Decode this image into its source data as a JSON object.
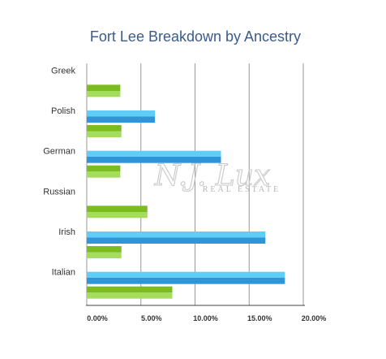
{
  "chart_data": {
    "type": "bar",
    "orientation": "horizontal",
    "title": "Fort Lee Breakdown by Ancestry",
    "categories": [
      "Greek",
      "Polish",
      "German",
      "Russian",
      "Irish",
      "Italian"
    ],
    "series": [
      {
        "color": "#3aaee6",
        "values": [
          null,
          6.3,
          12.4,
          null,
          16.5,
          18.3
        ]
      },
      {
        "color": "#84c52f",
        "values": [
          3.1,
          3.2,
          3.1,
          5.6,
          3.2,
          7.9
        ]
      }
    ],
    "xlim": [
      0,
      20
    ],
    "xticks": [
      "0.00%",
      "5.00%",
      "10.00%",
      "15.00%",
      "20.00%"
    ],
    "grid": true,
    "legend": "none"
  },
  "watermark": {
    "main": "N.J. Lux",
    "sub": "REAL ESTATE"
  }
}
